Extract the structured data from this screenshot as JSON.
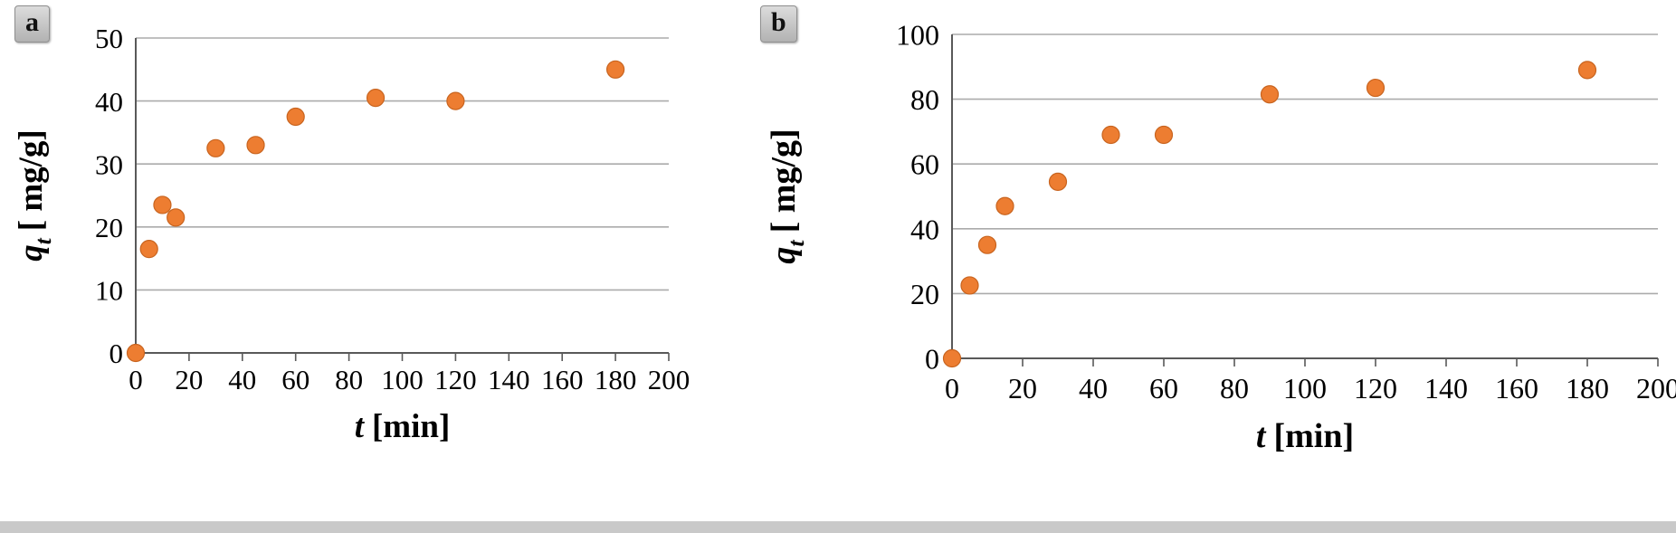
{
  "page": {
    "background": "#ffffff",
    "bottom_strip_color": "#c9c9c9"
  },
  "panels": [
    {
      "id": "a",
      "badge": "a"
    },
    {
      "id": "b",
      "badge": "b"
    }
  ],
  "chart_data": [
    {
      "id": "a",
      "type": "scatter",
      "title": "",
      "xlabel_italic": "t",
      "xlabel_rest": "[min]",
      "ylabel_var": "q",
      "ylabel_sub": "t",
      "ylabel_rest": "[ mg/g]",
      "xlim": [
        0,
        200
      ],
      "ylim": [
        0,
        50
      ],
      "xticks": [
        0,
        20,
        40,
        60,
        80,
        100,
        120,
        140,
        160,
        180,
        200
      ],
      "yticks": [
        0,
        10,
        20,
        30,
        40,
        50
      ],
      "grid": "horizontal",
      "legend": "none",
      "marker_color": "#ED7D31",
      "marker_stroke": "#C8641F",
      "grid_color": "#ababab",
      "axis_color": "#595959",
      "points": [
        [
          0,
          0
        ],
        [
          5,
          16.5
        ],
        [
          10,
          23.5
        ],
        [
          15,
          21.5
        ],
        [
          30,
          32.5
        ],
        [
          45,
          33
        ],
        [
          60,
          37.5
        ],
        [
          90,
          40.5
        ],
        [
          120,
          40
        ],
        [
          180,
          45
        ]
      ]
    },
    {
      "id": "b",
      "type": "scatter",
      "title": "",
      "xlabel_italic": "t",
      "xlabel_rest": "[min]",
      "ylabel_var": "q",
      "ylabel_sub": "t",
      "ylabel_rest": "[ mg/g]",
      "xlim": [
        0,
        200
      ],
      "ylim": [
        0,
        100
      ],
      "xticks": [
        0,
        20,
        40,
        60,
        80,
        100,
        120,
        140,
        160,
        180,
        200
      ],
      "yticks": [
        0,
        20,
        40,
        60,
        80,
        100
      ],
      "grid": "horizontal",
      "legend": "none",
      "marker_color": "#ED7D31",
      "marker_stroke": "#C8641F",
      "grid_color": "#ababab",
      "axis_color": "#595959",
      "points": [
        [
          0,
          0
        ],
        [
          5,
          22.5
        ],
        [
          10,
          35
        ],
        [
          15,
          47
        ],
        [
          30,
          54.5
        ],
        [
          45,
          69
        ],
        [
          60,
          69
        ],
        [
          90,
          81.5
        ],
        [
          120,
          83.5
        ],
        [
          180,
          89
        ]
      ]
    }
  ]
}
